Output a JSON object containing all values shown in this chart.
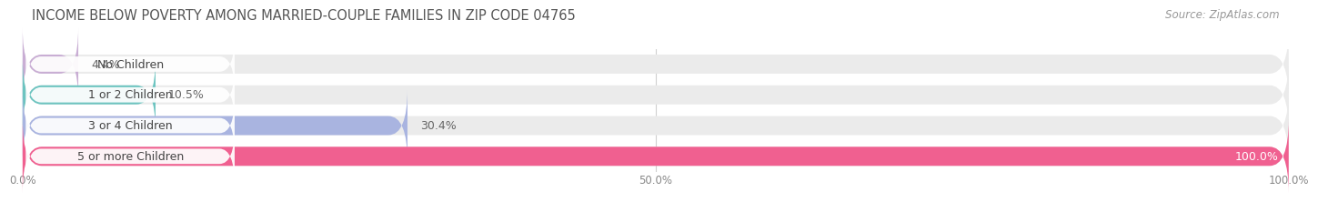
{
  "title": "INCOME BELOW POVERTY AMONG MARRIED-COUPLE FAMILIES IN ZIP CODE 04765",
  "source": "Source: ZipAtlas.com",
  "categories": [
    "No Children",
    "1 or 2 Children",
    "3 or 4 Children",
    "5 or more Children"
  ],
  "values": [
    4.4,
    10.5,
    30.4,
    100.0
  ],
  "bar_colors": [
    "#c9aed4",
    "#6dc4c0",
    "#a9b4e0",
    "#f06090"
  ],
  "bar_bg_color": "#ebebeb",
  "label_bg_color": "#ffffff",
  "xlim": [
    0,
    100
  ],
  "xticklabels": [
    "0.0%",
    "50.0%",
    "100.0%"
  ],
  "title_fontsize": 10.5,
  "source_fontsize": 8.5,
  "label_fontsize": 9,
  "value_fontsize": 9,
  "bar_height": 0.62,
  "background_color": "#ffffff",
  "grid_color": "#d0d0d0"
}
